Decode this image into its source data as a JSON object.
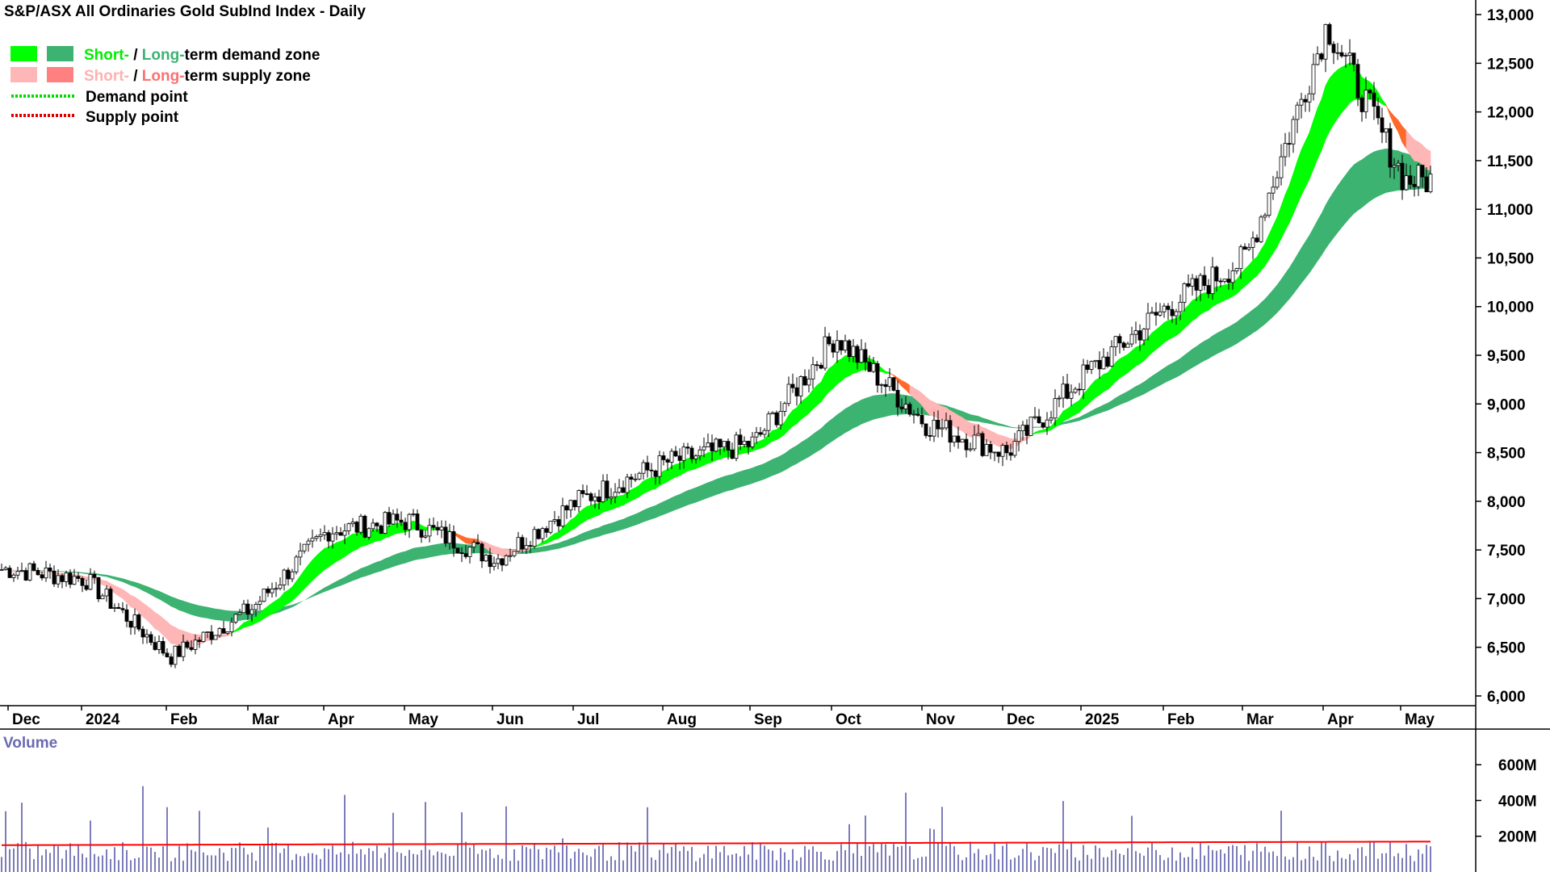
{
  "chart_data": {
    "type": "candlestick",
    "title": "S&P/ASX All Ordinaries Gold SubInd Index - Daily",
    "legend": {
      "demand_zone": {
        "short": "Short-",
        "sep": " / ",
        "long": "Long-",
        "rest": "term demand zone"
      },
      "supply_zone": {
        "short": "Short-",
        "sep": " / ",
        "long": "Long-",
        "rest": "term supply zone"
      },
      "demand_point": "Demand point",
      "supply_point": "Supply point"
    },
    "x_labels": [
      "Dec",
      "2024",
      "Feb",
      "Mar",
      "Apr",
      "May",
      "Jun",
      "Jul",
      "Aug",
      "Sep",
      "Oct",
      "Nov",
      "Dec",
      "2025",
      "Feb",
      "Mar",
      "Apr",
      "May"
    ],
    "y_ticks": [
      "6,000",
      "6,500",
      "7,000",
      "7,500",
      "8,000",
      "8,500",
      "9,000",
      "9,500",
      "10,000",
      "10,500",
      "11,000",
      "11,500",
      "12,000",
      "12,500",
      "13,000"
    ],
    "y_ticks_values": [
      6000,
      6500,
      7000,
      7500,
      8000,
      8500,
      9000,
      9500,
      10000,
      10500,
      11000,
      11500,
      12000,
      12500,
      13000
    ],
    "ylim": [
      5900,
      13150
    ],
    "price_path": [
      {
        "month": "Dec 2023",
        "close": 7300
      },
      {
        "month": "Jan 2024",
        "close": 7200
      },
      {
        "month": "Feb 2024",
        "close": 6400
      },
      {
        "month": "Mar 2024",
        "close": 6900
      },
      {
        "month": "Apr 2024",
        "close": 7700
      },
      {
        "month": "May 2024",
        "close": 7800
      },
      {
        "month": "Jun 2024",
        "close": 7400
      },
      {
        "month": "Jul 2024",
        "close": 8000
      },
      {
        "month": "Aug 2024",
        "close": 8400
      },
      {
        "month": "Sep 2024",
        "close": 8600
      },
      {
        "month": "Oct 2024",
        "close": 9700
      },
      {
        "month": "Nov 2024",
        "close": 8800
      },
      {
        "month": "Dec 2024",
        "close": 8500
      },
      {
        "month": "Jan 2025",
        "close": 9300
      },
      {
        "month": "Feb 2025",
        "close": 10000
      },
      {
        "month": "Mar 2025",
        "close": 10500
      },
      {
        "month": "Apr 2025",
        "close": 12900
      },
      {
        "month": "May 2025",
        "close": 11300
      }
    ],
    "volume": {
      "label": "Volume",
      "y_ticks": [
        "200M",
        "400M",
        "600M"
      ],
      "y_ticks_values": [
        200,
        400,
        600
      ],
      "ylim": [
        0,
        700
      ],
      "average_level": 150
    },
    "colors": {
      "short_demand": "#00ff00",
      "long_demand": "#3cb371",
      "short_supply": "#ffb6b6",
      "long_supply": "#ff8080",
      "supply_band": "#ff6a2a",
      "demand_point": "#00dd00",
      "supply_point": "#dd0000",
      "volume_bar": "#5c5caa",
      "volume_avg": "#ff0000",
      "volume_label": "#6a6ab0"
    }
  }
}
